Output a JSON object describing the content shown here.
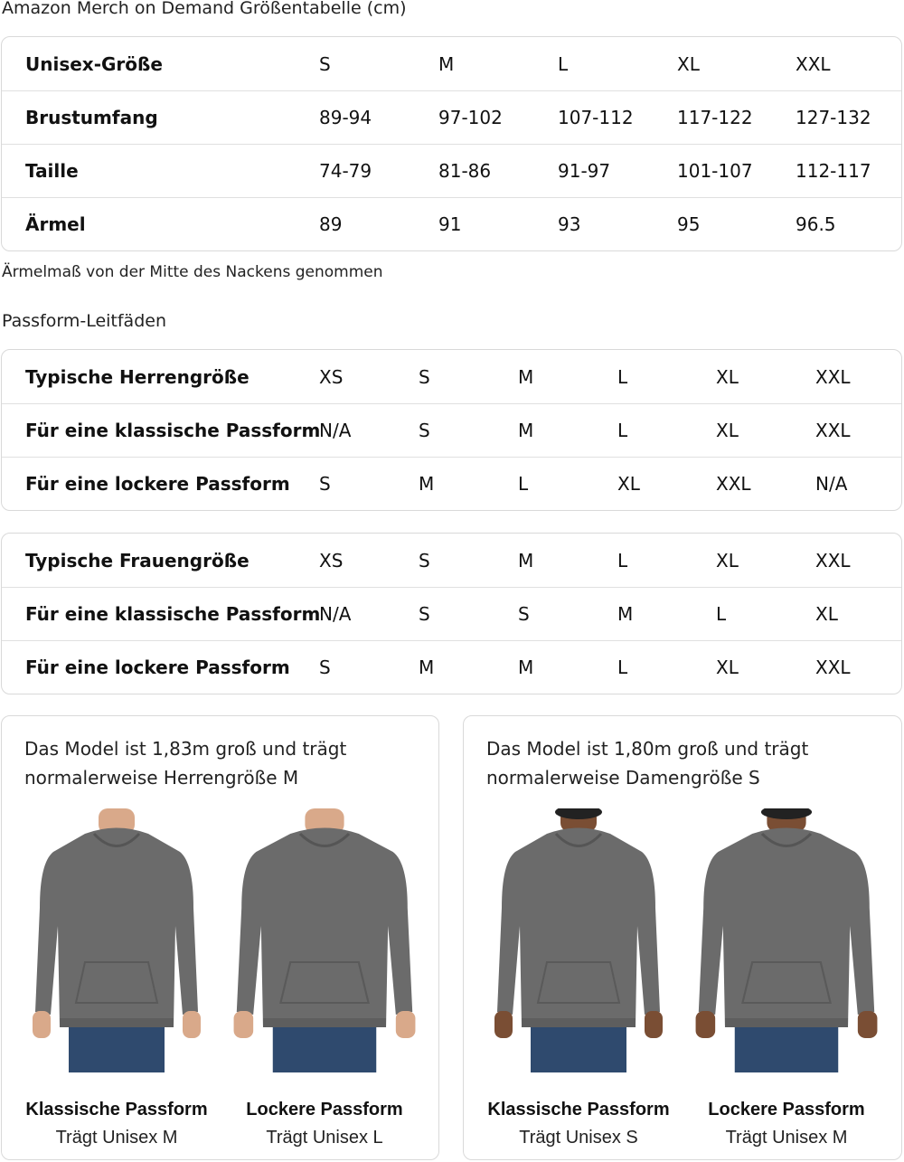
{
  "size_chart": {
    "title": "Amazon Merch on Demand Größentabelle (cm)",
    "rows": [
      {
        "label": "Unisex-Größe",
        "values": [
          "S",
          "M",
          "L",
          "XL",
          "XXL"
        ]
      },
      {
        "label": "Brustumfang",
        "values": [
          "89-94",
          "97-102",
          "107-112",
          "117-122",
          "127-132"
        ]
      },
      {
        "label": "Taille",
        "values": [
          "74-79",
          "81-86",
          "91-97",
          "101-107",
          "112-117"
        ]
      },
      {
        "label": "Ärmel",
        "values": [
          "89",
          "91",
          "93",
          "95",
          "96.5"
        ]
      }
    ],
    "note": "Ärmelmaß von der Mitte des Nackens genommen"
  },
  "fit_guides": {
    "title": "Passform-Leitfäden",
    "men": [
      {
        "label": "Typische Herrengröße",
        "values": [
          "XS",
          "S",
          "M",
          "L",
          "XL",
          "XXL"
        ]
      },
      {
        "label": "Für eine klassische Passform",
        "values": [
          "N/A",
          "S",
          "M",
          "L",
          "XL",
          "XXL"
        ]
      },
      {
        "label": "Für eine lockere Passform",
        "values": [
          "S",
          "M",
          "L",
          "XL",
          "XXL",
          "N/A"
        ]
      }
    ],
    "women": [
      {
        "label": "Typische Frauengröße",
        "values": [
          "XS",
          "S",
          "M",
          "L",
          "XL",
          "XXL"
        ]
      },
      {
        "label": "Für eine klassische Passform",
        "values": [
          "N/A",
          "S",
          "S",
          "M",
          "L",
          "XL"
        ]
      },
      {
        "label": "Für eine lockere Passform",
        "values": [
          "S",
          "M",
          "M",
          "L",
          "XL",
          "XXL"
        ]
      }
    ]
  },
  "models": [
    {
      "desc1": "Das Model ist 1,83m groß und trägt",
      "desc2": "normalerweise Herrengröße M",
      "figures": [
        {
          "caption": "Klassische Passform",
          "sub": "Trägt Unisex M"
        },
        {
          "caption": "Lockere Passform",
          "sub": "Trägt Unisex L"
        }
      ]
    },
    {
      "desc1": "Das Model ist 1,80m groß und trägt",
      "desc2": "normalerweise Damengröße S",
      "figures": [
        {
          "caption": "Klassische Passform",
          "sub": "Trägt Unisex S"
        },
        {
          "caption": "Lockere Passform",
          "sub": "Trägt Unisex M"
        }
      ]
    }
  ],
  "colors": {
    "hoodie": "#6b6b6b",
    "jeans": "#2f4a6e",
    "skin_men": "#d9a98a",
    "skin_women": "#7a4e34",
    "border": "#d9d9d9"
  }
}
